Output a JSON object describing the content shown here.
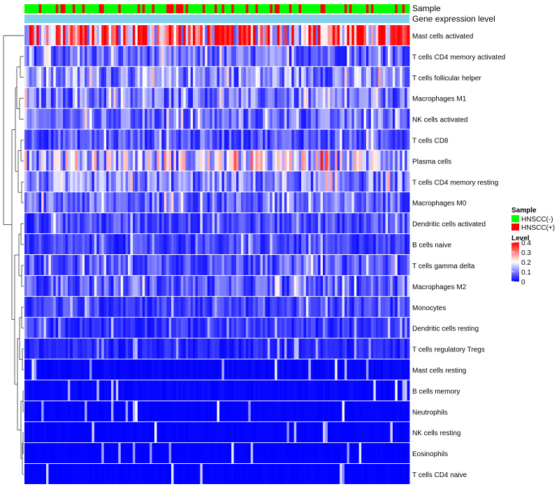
{
  "chart_data": {
    "type": "heatmap",
    "title": "",
    "annotation_tracks": [
      "Sample",
      "Gene expression level"
    ],
    "rows": [
      "Mast cells activated",
      "T cells CD4 memory activated",
      "T cells follicular helper",
      "Macrophages M1",
      "NK cells activated",
      "T cells CD8",
      "Plasma cells",
      "T cells CD4 memory resting",
      "Macrophages M0",
      "Dendritic cells activated",
      "B cells naive",
      "T cells gamma delta",
      "Macrophages M2",
      "Monocytes",
      "Dendritic cells resting",
      "T cells regulatory  Tregs",
      "Mast cells resting",
      "B cells memory",
      "Neutrophils",
      "NK cells resting",
      "Eosinophils",
      "T cells CD4 naive"
    ],
    "row_mean_level": [
      0.28,
      0.08,
      0.11,
      0.09,
      0.08,
      0.07,
      0.16,
      0.1,
      0.08,
      0.06,
      0.05,
      0.07,
      0.07,
      0.05,
      0.04,
      0.03,
      0.01,
      0.01,
      0.005,
      0.005,
      0.003,
      0.004
    ],
    "samples_shown": 160,
    "legend_sample": {
      "title": "Sample",
      "entries": [
        {
          "label": "HNSCC(-)",
          "color": "#00ff00"
        },
        {
          "label": "HNSCC(+)",
          "color": "#ff0000"
        }
      ]
    },
    "legend_level": {
      "title": "Level",
      "ticks": [
        "0.4",
        "0.3",
        "0.2",
        "0.1",
        "0"
      ],
      "tick_values": [
        0.4,
        0.3,
        0.2,
        0.1,
        0
      ],
      "range": [
        0,
        0.4
      ],
      "colors": [
        "#0000ff",
        "#ffffff",
        "#ff0000"
      ]
    },
    "gene_expression_color": "#87ceeb",
    "row_dendrogram": true
  }
}
